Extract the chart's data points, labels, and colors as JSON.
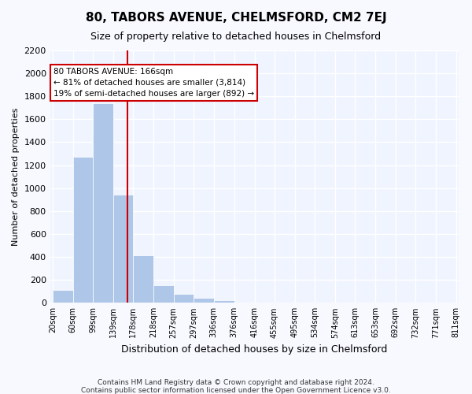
{
  "title": "80, TABORS AVENUE, CHELMSFORD, CM2 7EJ",
  "subtitle": "Size of property relative to detached houses in Chelmsford",
  "xlabel": "Distribution of detached houses by size in Chelmsford",
  "ylabel": "Number of detached properties",
  "bins": [
    "20sqm",
    "60sqm",
    "99sqm",
    "139sqm",
    "178sqm",
    "218sqm",
    "257sqm",
    "297sqm",
    "336sqm",
    "376sqm",
    "416sqm",
    "455sqm",
    "495sqm",
    "534sqm",
    "574sqm",
    "613sqm",
    "653sqm",
    "692sqm",
    "732sqm",
    "771sqm",
    "811sqm"
  ],
  "bin_edges": [
    20,
    60,
    99,
    139,
    178,
    218,
    257,
    297,
    336,
    376,
    416,
    455,
    495,
    534,
    574,
    613,
    653,
    692,
    732,
    771,
    811
  ],
  "counts": [
    110,
    1270,
    1740,
    940,
    415,
    155,
    80,
    40,
    25,
    0,
    0,
    0,
    0,
    0,
    0,
    0,
    0,
    0,
    0,
    0
  ],
  "bar_color": "#aec6e8",
  "bar_edge_color": "#ffffff",
  "vline_x": 166,
  "vline_color": "#cc0000",
  "annotation_text": "80 TABORS AVENUE: 166sqm\n← 81% of detached houses are smaller (3,814)\n19% of semi-detached houses are larger (892) →",
  "annotation_box_color": "#ffffff",
  "annotation_box_edge": "#cc0000",
  "ylim": [
    0,
    2200
  ],
  "yticks": [
    0,
    200,
    400,
    600,
    800,
    1000,
    1200,
    1400,
    1600,
    1800,
    2000,
    2200
  ],
  "background_color": "#f0f4ff",
  "grid_color": "#ffffff",
  "footer1": "Contains HM Land Registry data © Crown copyright and database right 2024.",
  "footer2": "Contains public sector information licensed under the Open Government Licence v3.0."
}
